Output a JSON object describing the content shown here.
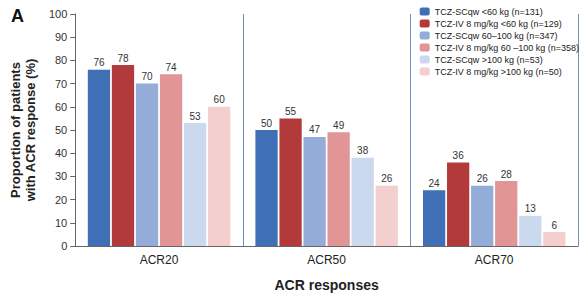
{
  "chart_data": {
    "type": "bar",
    "title": "A",
    "x_label": "ACR responses",
    "y_label": "Proportion of patients\nwith ACR response (%)",
    "categories": [
      "ACR20",
      "ACR50",
      "ACR70"
    ],
    "series": [
      {
        "name": "TCZ-SCqw <60 kg (n=131)",
        "color": "#3f6fb4",
        "values": [
          76,
          50,
          24
        ]
      },
      {
        "name": "TCZ-IV 8 mg/kg <60 kg (n=129)",
        "color": "#b33a3a",
        "values": [
          78,
          55,
          36
        ]
      },
      {
        "name": "TCZ-SCqw 60–100 kg (n=347)",
        "color": "#93acd8",
        "values": [
          70,
          47,
          26
        ]
      },
      {
        "name": "TCZ-IV 8 mg/kg 60 –100 kg (n=358)",
        "color": "#e29595",
        "values": [
          74,
          49,
          28
        ]
      },
      {
        "name": "TCZ-SCqw >100 kg (n=53)",
        "color": "#cbd9ef",
        "values": [
          53,
          38,
          13
        ]
      },
      {
        "name": "TCZ-IV 8 mg/kg >100 kg (n=50)",
        "color": "#f4cfcf",
        "values": [
          60,
          26,
          6
        ]
      }
    ],
    "ylim": [
      0,
      100
    ],
    "yticks": [
      0,
      10,
      20,
      30,
      40,
      50,
      60,
      70,
      80,
      90,
      100
    ],
    "grid": "x",
    "legend": "top-right",
    "data_labels": true
  }
}
